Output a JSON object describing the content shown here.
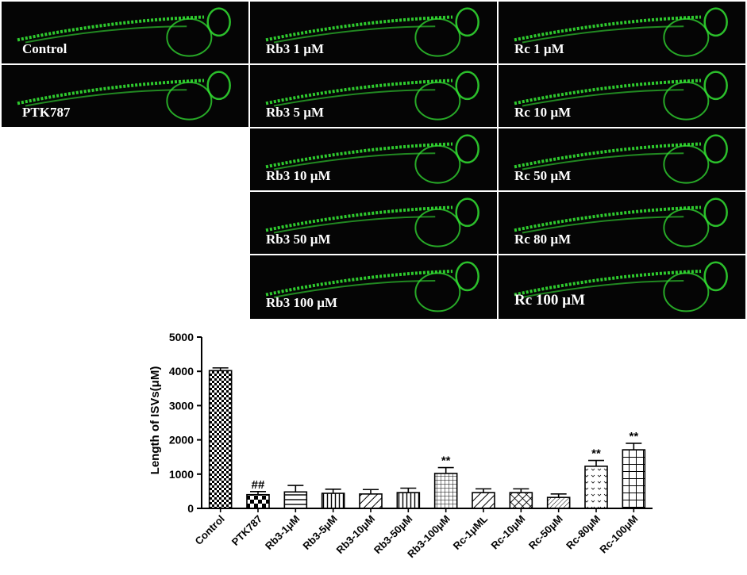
{
  "panels": [
    {
      "label": "Control"
    },
    {
      "label": "PTK787"
    },
    {
      "label": "Rb3 1 µM"
    },
    {
      "label": "Rb3 5 µM"
    },
    {
      "label": "Rb3 10 µM"
    },
    {
      "label": "Rb3 50 µM"
    },
    {
      "label": "Rb3 100 µM"
    },
    {
      "label": "Rc 1 µM"
    },
    {
      "label": "Rc 10 µM"
    },
    {
      "label": "Rc 50 µM"
    },
    {
      "label": "Rc 80 µM"
    },
    {
      "label": "Rc 100 µM"
    }
  ],
  "colors": {
    "fluorescence": "#33e033",
    "panel_bg": "#050505",
    "bar_stroke": "#000000"
  },
  "chart_data": {
    "type": "bar",
    "title": "",
    "xlabel": "",
    "ylabel": "Length of ISVs(μM)",
    "ylim": [
      0,
      5000
    ],
    "yticks": [
      0,
      1000,
      2000,
      3000,
      4000,
      5000
    ],
    "categories": [
      "Control",
      "PTK787",
      "Rb3-1μM",
      "Rb3-5μM",
      "Rb3-10μM",
      "Rb3-50μM",
      "Rb3-100μM",
      "Rc-1μML",
      "Rc-10μM",
      "Rc-50μM",
      "Rc-80μM",
      "Rc-100μM"
    ],
    "values": [
      4020,
      400,
      480,
      440,
      420,
      460,
      1020,
      460,
      460,
      320,
      1230,
      1710
    ],
    "errors": [
      80,
      90,
      190,
      120,
      130,
      130,
      170,
      110,
      110,
      100,
      170,
      190
    ],
    "significance": [
      "",
      "##",
      "",
      "",
      "",
      "",
      "**",
      "",
      "",
      "",
      "**",
      "**"
    ],
    "patterns": [
      "checker",
      "checker-large",
      "hstripe",
      "vstripe",
      "diag",
      "vstripe",
      "grid-fine",
      "diag",
      "crosshatch",
      "diag-fine",
      "dots",
      "grid-large"
    ]
  }
}
